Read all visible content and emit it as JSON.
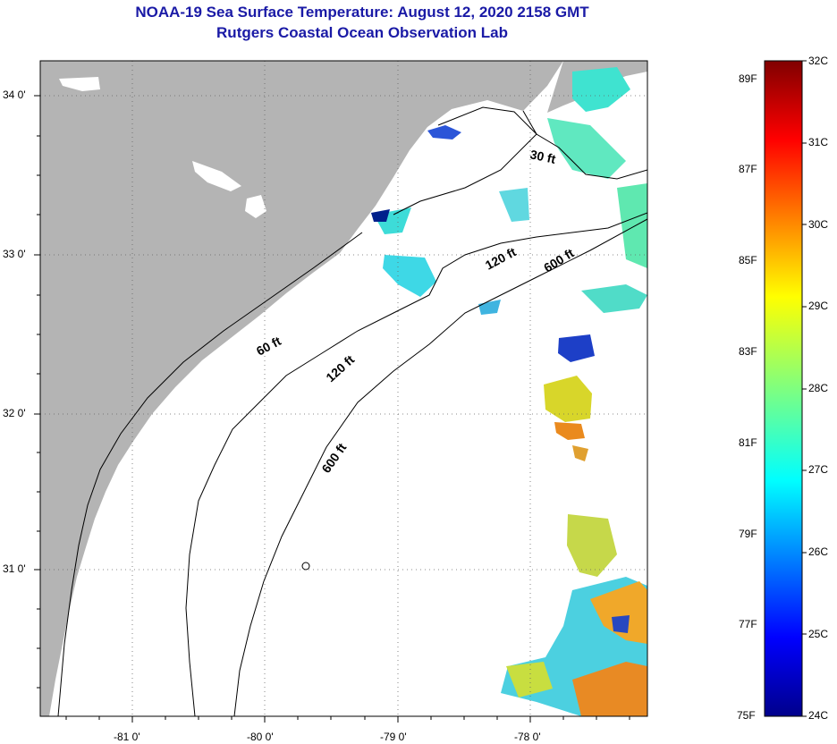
{
  "header": {
    "title": "NOAA-19 Sea Surface Temperature:  August 12, 2020 2158 GMT",
    "subtitle": "Rutgers Coastal Ocean Observation Lab"
  },
  "map": {
    "lat_labels": [
      "34 0'",
      "33 0'",
      "32 0'",
      "31 0'"
    ],
    "lon_labels": [
      "-81 0'",
      "-80 0'",
      "-79 0'",
      "-78 0'"
    ],
    "isobaths": [
      {
        "label": "30 ft"
      },
      {
        "label": "60 ft"
      },
      {
        "label": "120 ft"
      },
      {
        "label": "120 ft"
      },
      {
        "label": "600 ft"
      },
      {
        "label": "600 ft"
      }
    ],
    "colors": {
      "land": "#b4b4b4",
      "ocean": "#ffffff",
      "title": "#1a1aa6"
    }
  },
  "colorbar": {
    "fahrenheit_labels": [
      "89F",
      "87F",
      "85F",
      "83F",
      "81F",
      "79F",
      "77F",
      "75F"
    ],
    "celsius_labels": [
      "32C",
      "31C",
      "30C",
      "29C",
      "28C",
      "27C",
      "26C",
      "25C",
      "24C"
    ],
    "range_c": [
      24,
      32
    ]
  }
}
